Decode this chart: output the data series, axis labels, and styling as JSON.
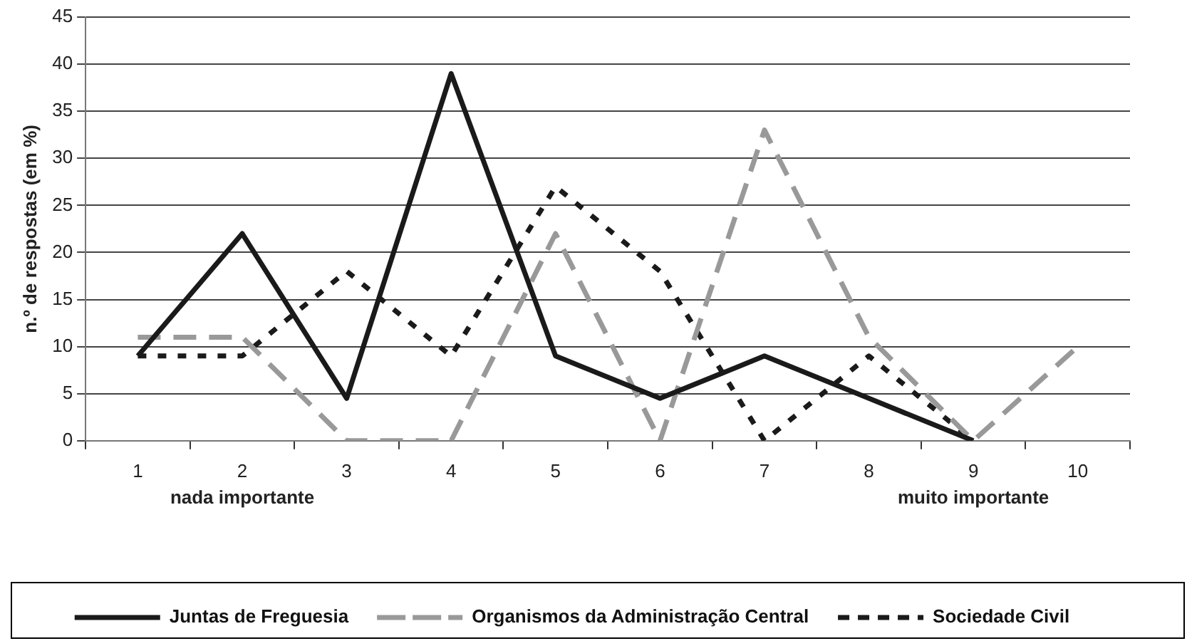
{
  "chart_data": {
    "type": "line",
    "ylabel": "n.º de respostas (em %)",
    "categories": [
      "1",
      "2",
      "3",
      "4",
      "5",
      "6",
      "7",
      "8",
      "9",
      "10"
    ],
    "series": [
      {
        "name": "Juntas de Freguesia",
        "color": "#1a1a1a",
        "line_style": "solid",
        "values": [
          9,
          22,
          4.5,
          39,
          9,
          4.5,
          9,
          4.5,
          0,
          null
        ]
      },
      {
        "name": "Organismos da Administração Central",
        "color": "#999999",
        "line_style": "dashed",
        "values": [
          11,
          11,
          0,
          0,
          22,
          0,
          33,
          11,
          0,
          10
        ]
      },
      {
        "name": "Sociedade Civil",
        "color": "#1a1a1a",
        "line_style": "dotted",
        "values": [
          9,
          9,
          18,
          9,
          27,
          18,
          0,
          9,
          0,
          null
        ]
      }
    ],
    "ylim": [
      0,
      45
    ],
    "yticks": [
      0,
      5,
      10,
      15,
      20,
      25,
      30,
      35,
      40,
      45
    ],
    "grid": "y",
    "legend": "bottom",
    "marker": "none",
    "annotations": [
      "nada importante",
      "muito importante"
    ]
  }
}
